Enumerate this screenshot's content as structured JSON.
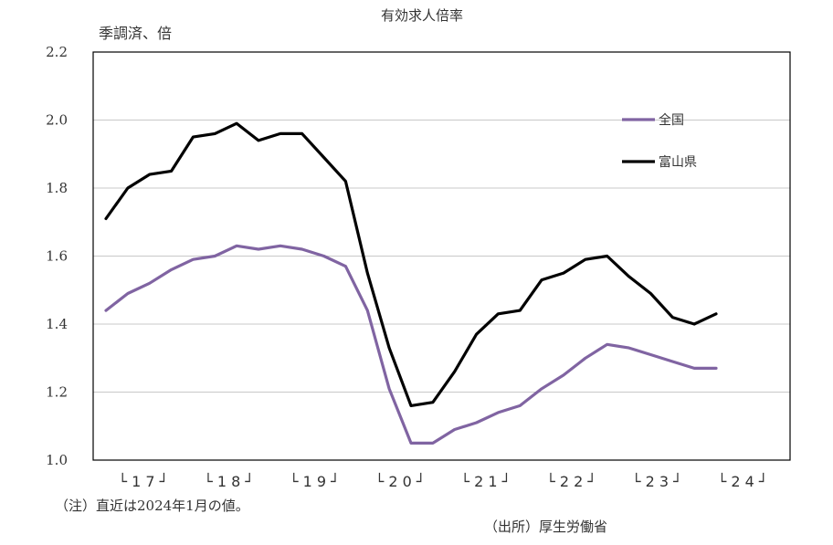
{
  "chart_data": {
    "type": "line",
    "title": "有効求人倍率",
    "ylabel": "季調済、倍",
    "xlabel": "",
    "ylim": [
      1.0,
      2.2
    ],
    "yticks": [
      "1.0",
      "1.2",
      "1.4",
      "1.6",
      "1.8",
      "2.0",
      "2.2"
    ],
    "ytick_values": [
      1.0,
      1.2,
      1.4,
      1.6,
      1.8,
      2.0,
      2.2
    ],
    "grid": true,
    "legend_position": "top-right",
    "year_groups": [
      {
        "label": "└ 1 7 ┘"
      },
      {
        "label": "└ 1 8 ┘"
      },
      {
        "label": "└ 1 9 ┘"
      },
      {
        "label": "└ 2 0 ┘"
      },
      {
        "label": "└ 2 1 ┘"
      },
      {
        "label": "└ 2 2 ┘"
      },
      {
        "label": "└ 2 3 ┘"
      },
      {
        "label": "└ 2 4 ┘"
      }
    ],
    "series": [
      {
        "name": "全国",
        "color": "#8064a2",
        "values": [
          1.44,
          1.49,
          1.52,
          1.56,
          1.59,
          1.6,
          1.63,
          1.62,
          1.63,
          1.62,
          1.6,
          1.57,
          1.44,
          1.21,
          1.05,
          1.05,
          1.09,
          1.11,
          1.14,
          1.16,
          1.21,
          1.25,
          1.3,
          1.34,
          1.33,
          1.31,
          1.29,
          1.27,
          1.27
        ]
      },
      {
        "name": "富山県",
        "color": "#000000",
        "values": [
          1.71,
          1.8,
          1.84,
          1.85,
          1.95,
          1.96,
          1.99,
          1.94,
          1.96,
          1.96,
          1.89,
          1.82,
          1.55,
          1.33,
          1.16,
          1.17,
          1.26,
          1.37,
          1.43,
          1.44,
          1.53,
          1.55,
          1.59,
          1.6,
          1.54,
          1.49,
          1.42,
          1.4,
          1.43
        ]
      }
    ]
  },
  "notes": {
    "footnote": "（注）直近は2024年1月の値。",
    "source": "（出所）厚生労働省"
  }
}
